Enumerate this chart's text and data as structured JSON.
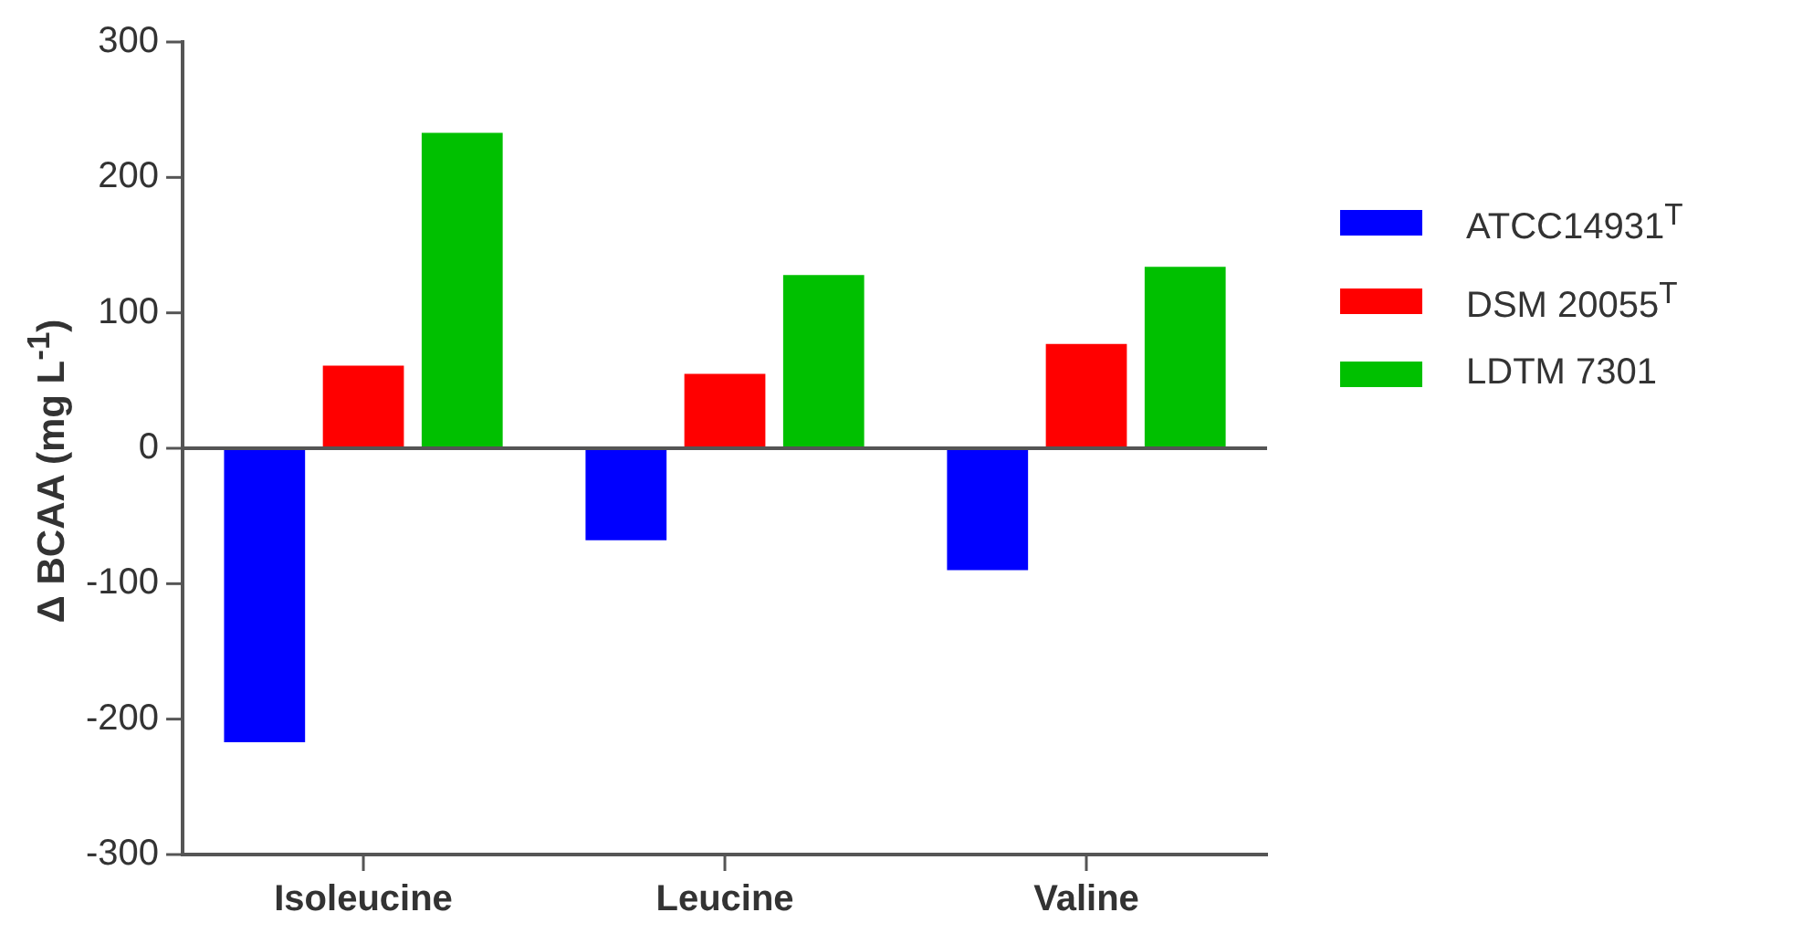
{
  "chart_data": {
    "type": "bar",
    "ylabel": "Δ BCAA (mg L$^{-1}$)",
    "categories": [
      "Isoleucine",
      "Leucine",
      "Valine"
    ],
    "series": [
      {
        "name": "ATCC14931$^{T}$",
        "color": "#0000ff",
        "values": [
          -217,
          -68,
          -90
        ]
      },
      {
        "name": "DSM 20055$^{T}$",
        "color": "#ff0000",
        "values": [
          61,
          55,
          77
        ]
      },
      {
        "name": "LDTM 7301",
        "color": "#00c000",
        "values": [
          233,
          128,
          134
        ]
      }
    ],
    "ylim": [
      -300,
      300
    ],
    "yticks": [
      -300,
      -200,
      -100,
      0,
      100,
      200,
      300
    ],
    "ref_lines": [
      {
        "axis": "y",
        "value": 0,
        "color": "#555555"
      }
    ],
    "grid": false,
    "legend": "right"
  }
}
